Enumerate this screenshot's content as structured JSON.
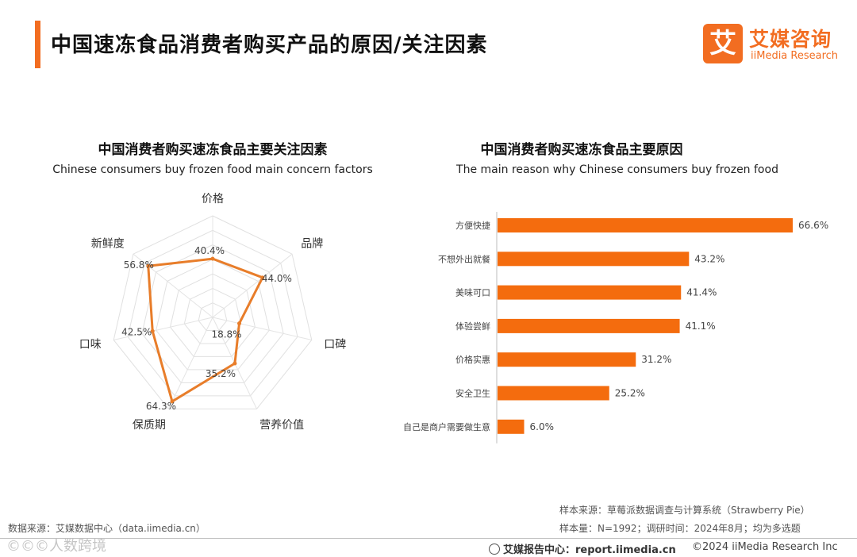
{
  "page": {
    "title": "中国速冻食品消费者购买产品的原因/关注因素",
    "accent_color": "#f26d21"
  },
  "logo": {
    "icon_char": "艾",
    "name_cn": "艾媒咨询",
    "name_en": "iiMedia Research"
  },
  "chart_data": [
    {
      "type": "radar",
      "title": "中国消费者购买速冻食品主要关注因素",
      "subtitle": "Chinese consumers buy frozen food main concern factors",
      "categories": [
        "价格",
        "品牌",
        "口碑",
        "营养价值",
        "保质期",
        "口味",
        "新鲜度"
      ],
      "values": [
        40.4,
        44.0,
        18.8,
        35.2,
        64.3,
        42.5,
        56.8
      ],
      "value_labels": [
        "40.4%",
        "44.0%",
        "18.8%",
        "35.2%",
        "64.3%",
        "42.5%",
        "56.8%"
      ],
      "range": [
        0,
        70
      ],
      "rings": 7,
      "series_color": "#e87d2a"
    },
    {
      "type": "bar",
      "orientation": "horizontal",
      "title": "中国消费者购买速冻食品主要原因",
      "subtitle": "The main reason why Chinese consumers buy frozen food",
      "categories": [
        "方便快捷",
        "不想外出就餐",
        "美味可口",
        "体验尝鲜",
        "价格实惠",
        "安全卫生",
        "自己是商户需要做生意"
      ],
      "values": [
        66.6,
        43.2,
        41.4,
        41.1,
        31.2,
        25.2,
        6.0
      ],
      "value_labels": [
        "66.6%",
        "43.2%",
        "41.4%",
        "41.1%",
        "31.2%",
        "25.2%",
        "6.0%"
      ],
      "xlim": [
        0,
        70
      ],
      "bar_color": "#f46c0e"
    }
  ],
  "source": {
    "left": "数据来源：艾媒数据中心（data.iimedia.cn）",
    "sample_source": "样本来源：草莓派数据调查与计算系统（Strawberry Pie）",
    "sample_size": "样本量：N=1992；调研时间：2024年8月；均为多选题"
  },
  "footer": {
    "report_center": "艾媒报告中心：report.iimedia.cn",
    "copyright": "©2024  iiMedia Research Inc",
    "watermark": "©©©人数跨境"
  }
}
